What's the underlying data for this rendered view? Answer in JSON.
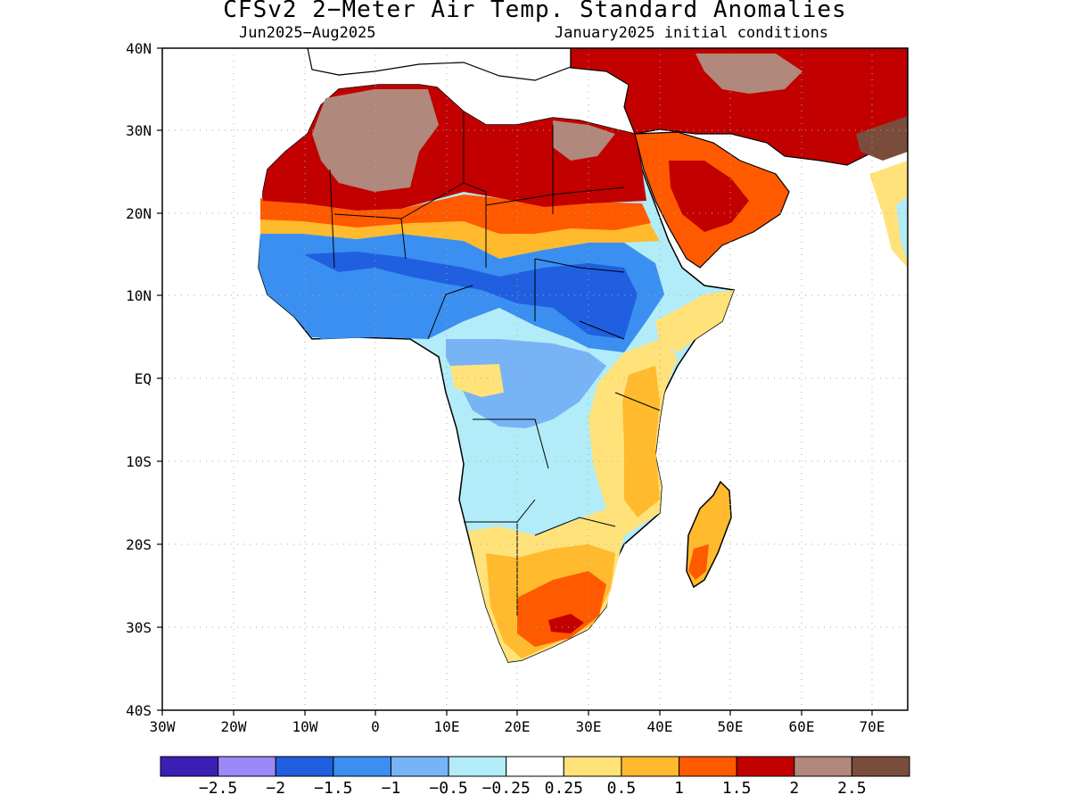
{
  "title": "CFSv2 2−Meter Air Temp. Standard Anomalies",
  "period": "Jun2025−Aug2025",
  "initial_conditions": "January2025 initial conditions",
  "lat_labels": [
    "40N",
    "30N",
    "20N",
    "10N",
    "EQ",
    "10S",
    "20S",
    "30S",
    "40S"
  ],
  "lon_labels": [
    "30W",
    "20W",
    "10W",
    "0",
    "10E",
    "20E",
    "30E",
    "40E",
    "50E",
    "60E",
    "70E"
  ],
  "colorbar": {
    "colors": [
      "#3b1fb5",
      "#9d88f7",
      "#1f5fe0",
      "#3a8ff0",
      "#77b3f5",
      "#b1ecf8",
      "#ffffff",
      "#ffe27a",
      "#ffba2d",
      "#ff5a00",
      "#c20000",
      "#b0887c",
      "#7a4c3c"
    ],
    "labels": [
      "−2.5",
      "−2",
      "−1.5",
      "−1",
      "−0.5",
      "−0.25",
      "0.25",
      "0.5",
      "1",
      "1.5",
      "2",
      "2.5"
    ]
  },
  "anomaly_regions": [
    {
      "region": "Sahara / North Africa",
      "category": "2 to 2.5+"
    },
    {
      "region": "Sahel / West Africa",
      "category": "-1.5 to -0.5"
    },
    {
      "region": "Arabian Peninsula",
      "category": "1 to 2"
    },
    {
      "region": "Central / Southern Africa",
      "category": "-1 to -0.25"
    },
    {
      "region": "South Africa",
      "category": "0.5 to 1.5"
    },
    {
      "region": "Madagascar",
      "category": "0.5 to 2"
    }
  ]
}
